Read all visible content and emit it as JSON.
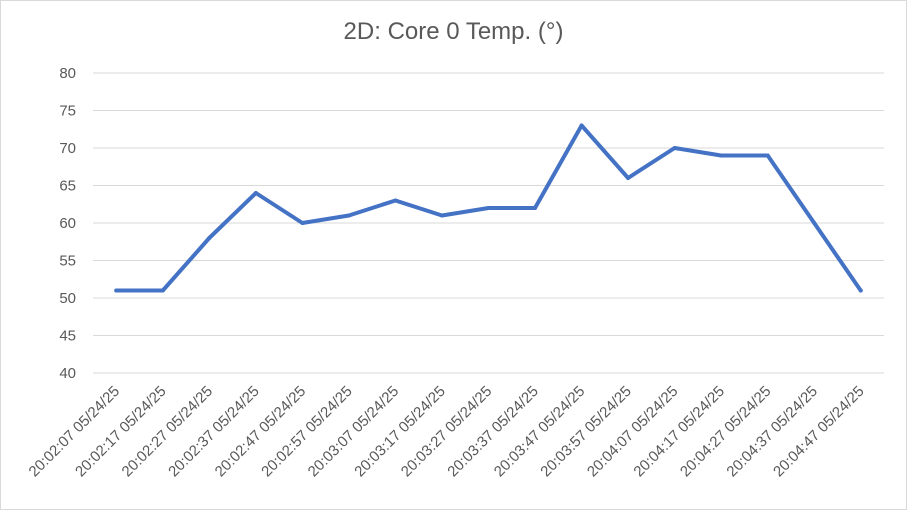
{
  "chart_data": {
    "type": "line",
    "title": "2D: Core 0 Temp. (°)",
    "xlabel": "",
    "ylabel": "",
    "ylim": [
      40,
      80
    ],
    "y_ticks": [
      40,
      45,
      50,
      55,
      60,
      65,
      70,
      75,
      80
    ],
    "grid": true,
    "legend": "none",
    "categories": [
      "20:02:07 05/24/25",
      "20:02:17 05/24/25",
      "20:02:27 05/24/25",
      "20:02:37 05/24/25",
      "20:02:47 05/24/25",
      "20:02:57 05/24/25",
      "20:03:07 05/24/25",
      "20:03:17 05/24/25",
      "20:03:27 05/24/25",
      "20:03:37 05/24/25",
      "20:03:47 05/24/25",
      "20:03:57 05/24/25",
      "20:04:07 05/24/25",
      "20:04:17 05/24/25",
      "20:04:27 05/24/25",
      "20:04:37 05/24/25",
      "20:04:47 05/24/25"
    ],
    "series": [
      {
        "values": [
          51,
          51,
          58,
          64,
          60,
          61,
          63,
          61,
          62,
          62,
          73,
          66,
          70,
          69,
          69,
          60,
          51
        ],
        "color": "#4472c4"
      }
    ],
    "gridline_color": "#d9d9d9",
    "text_color": "#595959"
  }
}
